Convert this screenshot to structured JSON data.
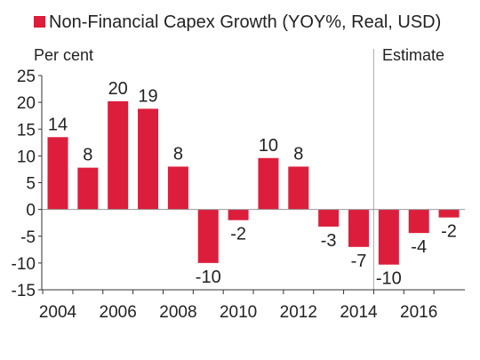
{
  "chart_data": {
    "type": "bar",
    "title": "",
    "legend": {
      "label": "Non-Financial Capex Growth (YOY%, Real, USD)",
      "position": "top-left"
    },
    "ylabel": "Per cent",
    "xlabel": "",
    "annotation": "Estimate",
    "estimate_from": 2014.5,
    "categories": [
      2004,
      2005,
      2006,
      2007,
      2008,
      2009,
      2010,
      2011,
      2012,
      2013,
      2014,
      2015,
      2016,
      2017
    ],
    "values": [
      13.5,
      7.8,
      20.2,
      18.8,
      8.0,
      -10.0,
      -2.0,
      9.6,
      8.0,
      -3.2,
      -7.0,
      -10.3,
      -4.4,
      -1.5
    ],
    "data_labels": [
      "14",
      "8",
      "20",
      "19",
      "8",
      "-10",
      "-2",
      "10",
      "8",
      "-3",
      "-7",
      "-10",
      "-4",
      "-2"
    ],
    "xticks": [
      "2004",
      "2006",
      "2008",
      "2010",
      "2012",
      "2014",
      "2016"
    ],
    "yticks": [
      "25",
      "20",
      "15",
      "10",
      "5",
      "0",
      "-5",
      "-10",
      "-15"
    ],
    "ylim": [
      -15,
      25
    ],
    "grid": false,
    "bar_color": "#dc1e3c",
    "divider_color": "#b4b4b4"
  }
}
